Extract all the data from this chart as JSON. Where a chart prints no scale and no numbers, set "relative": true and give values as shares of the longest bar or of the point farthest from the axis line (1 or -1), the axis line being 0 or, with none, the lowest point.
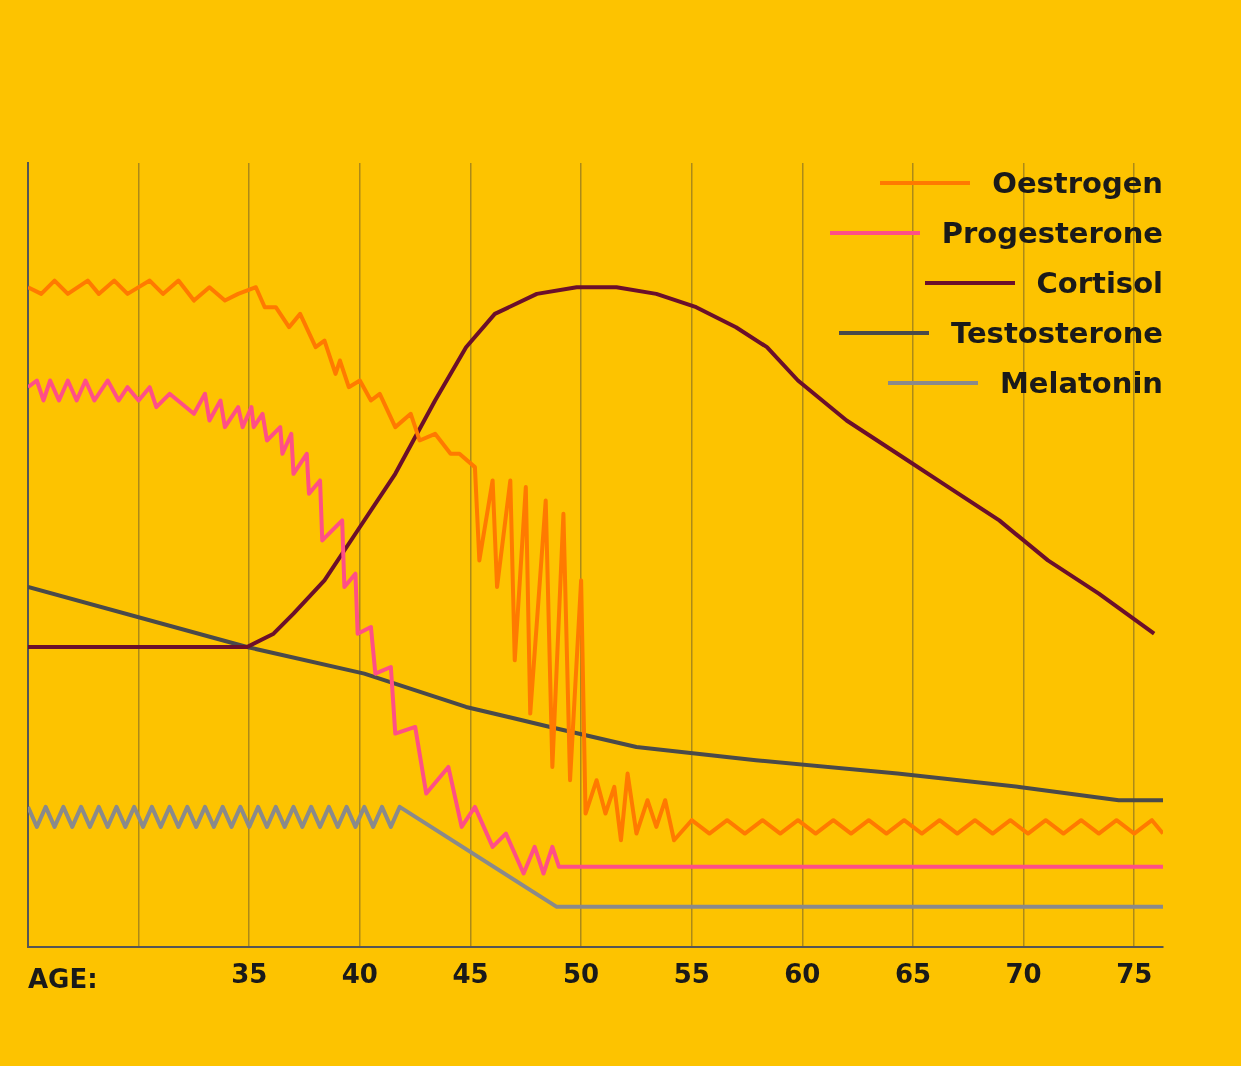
{
  "chart_data": {
    "type": "line",
    "xlabel": "AGE:",
    "relative": true,
    "xlim": [
      25,
      76.3
    ],
    "xticks": [
      {
        "value": 30,
        "label": null
      },
      35,
      40,
      45,
      50,
      55,
      60,
      65,
      70,
      75
    ],
    "grid": "x",
    "legend": "top right",
    "marker": "none",
    "series": [
      {
        "name": "Oestrogen",
        "color": "#ff7a00",
        "x": [
          25,
          25.6,
          26.2,
          26.8,
          27.7,
          28.2,
          28.9,
          29.5,
          30.5,
          31.1,
          31.8,
          32.5,
          33.2,
          33.9,
          34.5,
          35.3,
          35.7,
          36.2,
          36.8,
          37.3,
          38,
          38.4,
          38.9,
          39.1,
          39.5,
          40,
          40.5,
          40.9,
          41.6,
          42.3,
          42.7,
          43.4,
          44.1,
          44.5,
          45.2,
          45.4,
          46,
          46.2,
          46.8,
          47,
          47.5,
          47.7,
          48.4,
          48.7,
          49.2,
          49.5,
          50,
          50.2,
          50.7,
          51.1,
          51.5,
          51.8,
          52.1,
          52.5,
          53,
          53.4,
          53.8,
          54.2,
          55,
          55.8,
          56.6,
          57.4,
          58.2,
          59,
          59.8,
          60.6,
          61.4,
          62.2,
          63,
          63.8,
          64.6,
          65.4,
          66.2,
          67,
          67.8,
          68.6,
          69.4,
          70.2,
          71,
          71.8,
          72.6,
          73.4,
          74.2,
          75,
          75.8,
          76.3
        ],
        "values": [
          0.99,
          0.98,
          1.0,
          0.98,
          1.0,
          0.98,
          1.0,
          0.98,
          1.0,
          0.98,
          1.0,
          0.97,
          0.99,
          0.97,
          0.98,
          0.99,
          0.96,
          0.96,
          0.93,
          0.95,
          0.9,
          0.91,
          0.86,
          0.88,
          0.84,
          0.85,
          0.82,
          0.83,
          0.78,
          0.8,
          0.76,
          0.77,
          0.74,
          0.74,
          0.72,
          0.58,
          0.7,
          0.54,
          0.7,
          0.43,
          0.69,
          0.35,
          0.67,
          0.27,
          0.65,
          0.25,
          0.55,
          0.2,
          0.25,
          0.2,
          0.24,
          0.16,
          0.26,
          0.17,
          0.22,
          0.18,
          0.22,
          0.16,
          0.19,
          0.17,
          0.19,
          0.17,
          0.19,
          0.17,
          0.19,
          0.17,
          0.19,
          0.17,
          0.19,
          0.17,
          0.19,
          0.17,
          0.19,
          0.17,
          0.19,
          0.17,
          0.19,
          0.17,
          0.19,
          0.17,
          0.19,
          0.17,
          0.19,
          0.17,
          0.19,
          0.17
        ]
      },
      {
        "name": "Progesterone",
        "color": "#ff4f86",
        "x": [
          25,
          25.4,
          25.7,
          26.0,
          26.4,
          26.8,
          27.2,
          27.6,
          28.0,
          28.6,
          29.1,
          29.5,
          30.0,
          30.5,
          30.8,
          31.4,
          32.5,
          33.0,
          33.2,
          33.7,
          33.9,
          34.5,
          34.7,
          35.1,
          35.2,
          35.6,
          35.8,
          36.4,
          36.5,
          36.9,
          37.0,
          37.6,
          37.7,
          38.2,
          38.3,
          39.2,
          39.3,
          39.8,
          39.9,
          40.5,
          40.7,
          41.4,
          41.6,
          42.5,
          43.0,
          44.0,
          44.6,
          45.2,
          46.0,
          46.6,
          47.4,
          47.9,
          48.3,
          48.7,
          49.0,
          76.3
        ],
        "values": [
          0.84,
          0.85,
          0.82,
          0.85,
          0.82,
          0.85,
          0.82,
          0.85,
          0.82,
          0.85,
          0.82,
          0.84,
          0.82,
          0.84,
          0.81,
          0.83,
          0.8,
          0.83,
          0.79,
          0.82,
          0.78,
          0.81,
          0.78,
          0.81,
          0.78,
          0.8,
          0.76,
          0.78,
          0.74,
          0.77,
          0.71,
          0.74,
          0.68,
          0.7,
          0.61,
          0.64,
          0.54,
          0.56,
          0.47,
          0.48,
          0.41,
          0.42,
          0.32,
          0.33,
          0.23,
          0.27,
          0.18,
          0.21,
          0.15,
          0.17,
          0.11,
          0.15,
          0.11,
          0.15,
          0.12,
          0.12
        ]
      },
      {
        "name": "Cortisol",
        "color": "#6b0f2b",
        "x": [
          25,
          30.2,
          34.9,
          36.1,
          37.0,
          38.4,
          39.8,
          41.6,
          43.4,
          44.8,
          46.1,
          48.0,
          49.8,
          51.6,
          53.4,
          55.2,
          57.0,
          58.4,
          59.8,
          62.0,
          64.3,
          66.6,
          68.9,
          71.1,
          73.4,
          75.9
        ],
        "values": [
          0.45,
          0.45,
          0.45,
          0.47,
          0.5,
          0.55,
          0.62,
          0.71,
          0.82,
          0.9,
          0.95,
          0.98,
          0.99,
          0.99,
          0.98,
          0.96,
          0.93,
          0.9,
          0.85,
          0.79,
          0.74,
          0.69,
          0.64,
          0.58,
          0.53,
          0.47
        ]
      },
      {
        "name": "Testosterone",
        "color": "#4a4a4a",
        "x": [
          25,
          34.9,
          40.2,
          44.8,
          48.6,
          52.5,
          57.9,
          64.3,
          69.8,
          74.3,
          76.3
        ],
        "values": [
          0.54,
          0.45,
          0.41,
          0.36,
          0.33,
          0.3,
          0.28,
          0.26,
          0.24,
          0.22,
          0.22
        ]
      },
      {
        "name": "Melatonin",
        "color": "#8a8a8a",
        "x": [
          25,
          25.4,
          25.8,
          26.2,
          26.6,
          27,
          27.4,
          27.8,
          28.2,
          28.6,
          29,
          29.4,
          29.8,
          30.2,
          30.6,
          31,
          31.4,
          31.8,
          32.2,
          32.6,
          33,
          33.4,
          33.8,
          34.2,
          34.6,
          35,
          35.4,
          35.8,
          36.2,
          36.6,
          37,
          37.4,
          37.8,
          38.2,
          38.6,
          39,
          39.4,
          39.8,
          40.2,
          40.6,
          41,
          41.4,
          41.8,
          48.9,
          76.3
        ],
        "values": [
          0.21,
          0.18,
          0.21,
          0.18,
          0.21,
          0.18,
          0.21,
          0.18,
          0.21,
          0.18,
          0.21,
          0.18,
          0.21,
          0.18,
          0.21,
          0.18,
          0.21,
          0.18,
          0.21,
          0.18,
          0.21,
          0.18,
          0.21,
          0.18,
          0.21,
          0.18,
          0.21,
          0.18,
          0.21,
          0.18,
          0.21,
          0.18,
          0.21,
          0.18,
          0.21,
          0.18,
          0.21,
          0.18,
          0.21,
          0.18,
          0.21,
          0.18,
          0.21,
          0.06,
          0.06
        ]
      }
    ]
  }
}
